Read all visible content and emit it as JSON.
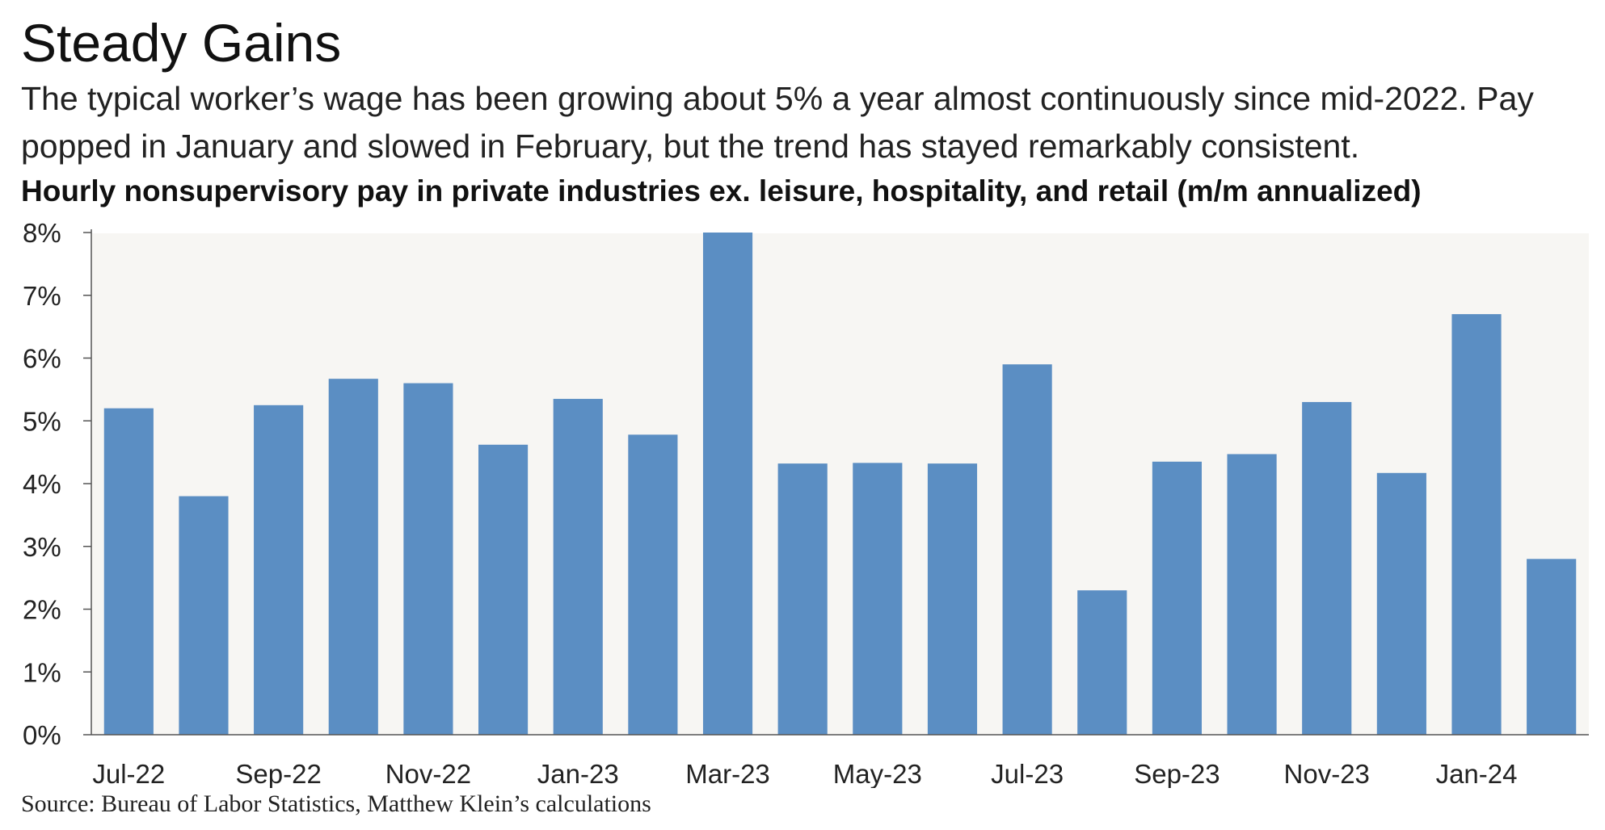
{
  "title": "Steady Gains",
  "subtitle": "The typical worker’s wage has been growing about 5% a year almost continuously since mid-2022. Pay popped in January and slowed in February, but the trend has stayed remarkably consistent.",
  "chart_heading": "Hourly nonsupervisory pay in private industries ex. leisure, hospitality, and retail (m/m annualized)",
  "source": "Source: Bureau of Labor Statistics, Matthew Klein’s calculations",
  "colors": {
    "bar": "#5b8ec3",
    "plot_background": "#f7f6f3",
    "axis": "#555555",
    "text": "#222222"
  },
  "chart_data": {
    "type": "bar",
    "title": "Hourly nonsupervisory pay in private industries ex. leisure, hospitality, and retail (m/m annualized)",
    "xlabel": "",
    "ylabel": "",
    "categories": [
      "Jul-22",
      "Aug-22",
      "Sep-22",
      "Oct-22",
      "Nov-22",
      "Dec-22",
      "Jan-23",
      "Feb-23",
      "Mar-23",
      "Apr-23",
      "May-23",
      "Jun-23",
      "Jul-23",
      "Aug-23",
      "Sep-23",
      "Oct-23",
      "Nov-23",
      "Dec-23",
      "Jan-24",
      "Feb-24"
    ],
    "x_tick_labels": [
      "Jul-22",
      "Sep-22",
      "Nov-22",
      "Jan-23",
      "Mar-23",
      "May-23",
      "Jul-23",
      "Sep-23",
      "Nov-23",
      "Jan-24"
    ],
    "series": [
      {
        "values": [
          5.2,
          3.8,
          5.25,
          5.67,
          5.6,
          4.62,
          5.35,
          4.78,
          8.0,
          4.32,
          4.33,
          4.32,
          5.9,
          2.3,
          4.35,
          4.47,
          5.3,
          4.17,
          6.7,
          2.8
        ]
      }
    ],
    "ylim": [
      0,
      8
    ],
    "y_ticks": [
      0,
      1,
      2,
      3,
      4,
      5,
      6,
      7,
      8
    ],
    "y_tick_labels": [
      "0%",
      "1%",
      "2%",
      "3%",
      "4%",
      "5%",
      "6%",
      "7%",
      "8%"
    ],
    "grid": false,
    "legend": "none"
  }
}
